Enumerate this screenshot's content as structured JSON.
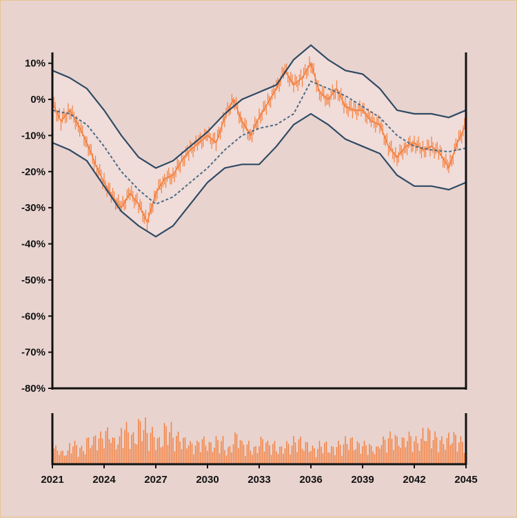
{
  "chart_data": {
    "type": "candlestick",
    "title": "",
    "xlabel": "",
    "ylabel": "",
    "x_ticks": [
      "2021",
      "2024",
      "2027",
      "2030",
      "2033",
      "2036",
      "2039",
      "2042",
      "2045"
    ],
    "y_ticks": [
      "10%",
      "0%",
      "-10%",
      "-20%",
      "-30%",
      "-40%",
      "-50%",
      "-60%",
      "-70%",
      "-80%"
    ],
    "ylim": [
      -80,
      13
    ],
    "xlim": [
      2021,
      2045
    ],
    "price_series": {
      "x": [
        2021.0,
        2021.5,
        2022.0,
        2022.5,
        2023.0,
        2023.5,
        2024.0,
        2024.5,
        2025.0,
        2025.5,
        2026.0,
        2026.5,
        2027.0,
        2027.5,
        2028.0,
        2028.5,
        2029.0,
        2029.5,
        2030.0,
        2030.5,
        2031.0,
        2031.5,
        2032.0,
        2032.5,
        2033.0,
        2033.5,
        2034.0,
        2034.5,
        2035.0,
        2035.5,
        2036.0,
        2036.5,
        2037.0,
        2037.5,
        2038.0,
        2038.5,
        2039.0,
        2039.5,
        2040.0,
        2040.5,
        2041.0,
        2041.5,
        2042.0,
        2042.5,
        2043.0,
        2043.5,
        2044.0,
        2044.5,
        2045.0
      ],
      "y": [
        -1,
        -6,
        -3,
        -7,
        -12,
        -18,
        -23,
        -27,
        -30,
        -26,
        -29,
        -34,
        -26,
        -22,
        -21,
        -17,
        -14,
        -12,
        -10,
        -12,
        -5,
        0,
        -6,
        -10,
        -5,
        -1,
        3,
        8,
        4,
        6,
        10,
        2,
        0,
        3,
        -2,
        -3,
        -3,
        -6,
        -7,
        -13,
        -16,
        -13,
        -12,
        -14,
        -13,
        -15,
        -19,
        -12,
        -7
      ]
    },
    "moving_average": {
      "x": [
        2021.0,
        2022.0,
        2023.0,
        2024.0,
        2025.0,
        2026.0,
        2027.0,
        2028.0,
        2029.0,
        2030.0,
        2031.0,
        2032.0,
        2033.0,
        2034.0,
        2035.0,
        2036.0,
        2037.0,
        2038.0,
        2039.0,
        2040.0,
        2041.0,
        2042.0,
        2043.0,
        2044.0,
        2045.0
      ],
      "y": [
        -3,
        -4,
        -7,
        -13,
        -20,
        -25,
        -29,
        -27,
        -23,
        -19,
        -14,
        -10,
        -8,
        -7,
        -4,
        5,
        3,
        1,
        -2,
        -5,
        -10,
        -13,
        -14,
        -14.5,
        -13.5
      ]
    },
    "band_upper": {
      "x": [
        2021.0,
        2022.0,
        2023.0,
        2024.0,
        2025.0,
        2026.0,
        2027.0,
        2028.0,
        2029.0,
        2030.0,
        2031.0,
        2032.0,
        2033.0,
        2034.0,
        2035.0,
        2036.0,
        2037.0,
        2038.0,
        2039.0,
        2040.0,
        2041.0,
        2042.0,
        2043.0,
        2044.0,
        2045.0
      ],
      "y": [
        8,
        6,
        3,
        -3,
        -10,
        -16,
        -19,
        -17,
        -13,
        -9,
        -4,
        0,
        2,
        4,
        11,
        15,
        11,
        8,
        7,
        3,
        -3,
        -4,
        -4,
        -5,
        -3
      ]
    },
    "band_lower": {
      "x": [
        2021.0,
        2022.0,
        2023.0,
        2024.0,
        2025.0,
        2026.0,
        2027.0,
        2028.0,
        2029.0,
        2030.0,
        2031.0,
        2032.0,
        2033.0,
        2034.0,
        2035.0,
        2036.0,
        2037.0,
        2038.0,
        2039.0,
        2040.0,
        2041.0,
        2042.0,
        2043.0,
        2044.0,
        2045.0
      ],
      "y": [
        -12,
        -14,
        -17,
        -24,
        -31,
        -35,
        -38,
        -35,
        -29,
        -23,
        -19,
        -18,
        -18,
        -13,
        -7,
        -4,
        -7,
        -11,
        -13,
        -15,
        -21,
        -24,
        -24,
        -25,
        -23
      ]
    },
    "volume": {
      "x": [
        2021.0,
        2021.5,
        2022.0,
        2022.5,
        2023.0,
        2023.5,
        2024.0,
        2024.5,
        2025.0,
        2025.5,
        2026.0,
        2026.5,
        2027.0,
        2027.5,
        2028.0,
        2028.5,
        2029.0,
        2029.5,
        2030.0,
        2030.5,
        2031.0,
        2031.5,
        2032.0,
        2032.5,
        2033.0,
        2033.5,
        2034.0,
        2034.5,
        2035.0,
        2035.5,
        2036.0,
        2036.5,
        2037.0,
        2037.5,
        2038.0,
        2038.5,
        2039.0,
        2039.5,
        2040.0,
        2040.5,
        2041.0,
        2041.5,
        2042.0,
        2042.5,
        2043.0,
        2043.5,
        2044.0,
        2044.5,
        2045.0
      ],
      "y": [
        0.4,
        0.3,
        0.5,
        0.4,
        0.6,
        0.7,
        0.8,
        0.6,
        0.9,
        0.7,
        1.0,
        0.8,
        0.6,
        0.9,
        0.7,
        0.6,
        0.5,
        0.6,
        0.5,
        0.6,
        0.4,
        0.7,
        0.5,
        0.4,
        0.6,
        0.5,
        0.4,
        0.5,
        0.6,
        0.5,
        0.4,
        0.5,
        0.4,
        0.5,
        0.6,
        0.5,
        0.5,
        0.4,
        0.6,
        0.7,
        0.6,
        0.7,
        0.6,
        0.8,
        0.7,
        0.6,
        0.7,
        0.6,
        0.5
      ]
    },
    "colors": {
      "background": "#e8d3cf",
      "band_fill": "#f0dcd9",
      "band_line": "#2e4a63",
      "moving_average": "#4a6a84",
      "price": "#f47f3c",
      "volume": "#f47f3c",
      "axis": "#111111"
    },
    "grid": false,
    "legend": "none"
  }
}
